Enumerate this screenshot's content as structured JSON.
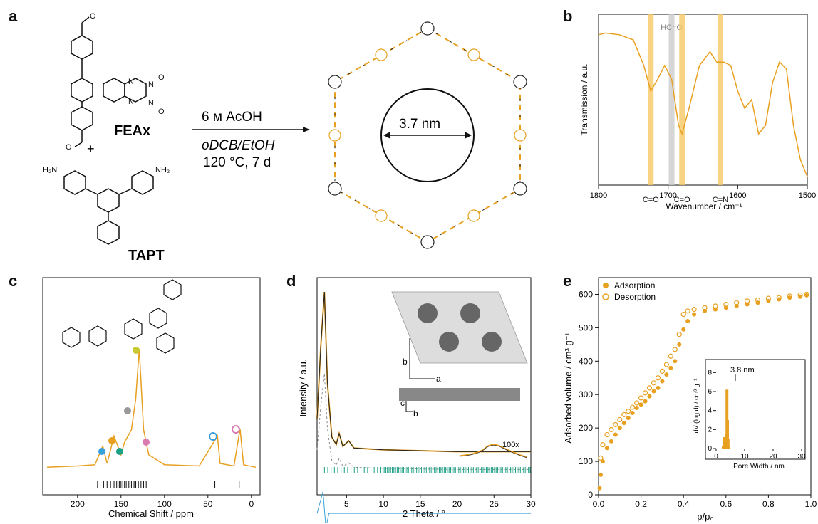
{
  "panels": {
    "a": "a",
    "b": "b",
    "c": "c",
    "d": "d",
    "e": "e"
  },
  "panel_a": {
    "compound1": "FEAx",
    "plus": "+",
    "compound2": "TAPT",
    "conditions_line1": "6 м AcOH",
    "conditions_line2": "oDCB/EtOH",
    "conditions_line3": "120 °C, 7 d",
    "pore_label": "3.7 nm",
    "amine_label": "H₂N",
    "amine_label_r": "NH₂"
  },
  "colors": {
    "orange": "#E8A020",
    "gray": "#999999",
    "teal": "#1AA085",
    "blue": "#3AA0D8",
    "pink": "#D97AB0",
    "yellowgreen": "#C8C830",
    "dark": "#222222"
  },
  "chart_data": [
    {
      "panel": "b",
      "type": "line",
      "xlabel": "Wavenumber / cm⁻¹",
      "ylabel": "Transmission / a.u.",
      "xlim": [
        1800,
        1500
      ],
      "xticks": [
        1800,
        1700,
        1600,
        1500
      ],
      "annotations": [
        {
          "label": "C=O",
          "x": 1725,
          "color": "#F7C865"
        },
        {
          "label": "HC=O",
          "x": 1695,
          "color": "#CCCCCC"
        },
        {
          "label": "C=O",
          "x": 1680,
          "color": "#F7C865"
        },
        {
          "label": "C=N",
          "x": 1625,
          "color": "#F7C865"
        }
      ],
      "series": [
        {
          "values": [
            [
              1800,
              0.88
            ],
            [
              1790,
              0.89
            ],
            [
              1770,
              0.88
            ],
            [
              1750,
              0.85
            ],
            [
              1735,
              0.7
            ],
            [
              1725,
              0.55
            ],
            [
              1715,
              0.62
            ],
            [
              1705,
              0.7
            ],
            [
              1695,
              0.62
            ],
            [
              1685,
              0.35
            ],
            [
              1680,
              0.3
            ],
            [
              1670,
              0.45
            ],
            [
              1655,
              0.7
            ],
            [
              1640,
              0.78
            ],
            [
              1630,
              0.72
            ],
            [
              1620,
              0.72
            ],
            [
              1610,
              0.7
            ],
            [
              1600,
              0.55
            ],
            [
              1590,
              0.45
            ],
            [
              1580,
              0.5
            ],
            [
              1570,
              0.3
            ],
            [
              1560,
              0.35
            ],
            [
              1550,
              0.6
            ],
            [
              1540,
              0.72
            ],
            [
              1530,
              0.68
            ],
            [
              1520,
              0.35
            ],
            [
              1510,
              0.15
            ],
            [
              1500,
              0.05
            ]
          ]
        }
      ]
    },
    {
      "panel": "c",
      "type": "line",
      "xlabel": "Chemical Shift / ppm",
      "xlim": [
        240,
        -10
      ],
      "xticks": [
        200,
        150,
        100,
        50,
        0
      ],
      "series": [
        {
          "values": [
            [
              235,
              0.05
            ],
            [
              200,
              0.06
            ],
            [
              180,
              0.07
            ],
            [
              171,
              0.22
            ],
            [
              166,
              0.08
            ],
            [
              158,
              0.3
            ],
            [
              150,
              0.15
            ],
            [
              146,
              0.25
            ],
            [
              138,
              0.35
            ],
            [
              133,
              0.6
            ],
            [
              129,
              1.0
            ],
            [
              124,
              0.35
            ],
            [
              118,
              0.15
            ],
            [
              100,
              0.07
            ],
            [
              60,
              0.06
            ],
            [
              39,
              0.3
            ],
            [
              36,
              0.08
            ],
            [
              20,
              0.06
            ],
            [
              13,
              0.36
            ],
            [
              9,
              0.07
            ],
            [
              -5,
              0.05
            ]
          ]
        }
      ],
      "ticks_below": [
        177,
        170,
        166,
        162,
        158,
        155,
        152,
        150,
        148,
        146,
        144,
        141,
        138,
        135,
        133,
        130,
        127,
        124,
        121,
        42,
        14
      ]
    },
    {
      "panel": "d",
      "type": "line",
      "xlabel": "2 Theta / °",
      "ylabel": "Intensity / a.u.",
      "xlim": [
        1,
        30
      ],
      "xticks": [
        5,
        10,
        15,
        20,
        25,
        30
      ],
      "annotations": [
        {
          "label": "100x"
        },
        {
          "label": "a"
        },
        {
          "label": "b"
        },
        {
          "label": "c"
        }
      ],
      "series": [
        {
          "values": [
            [
              1,
              0.3
            ],
            [
              1.5,
              0.7
            ],
            [
              2.0,
              1.0
            ],
            [
              2.4,
              0.5
            ],
            [
              3.0,
              0.2
            ],
            [
              3.6,
              0.16
            ],
            [
              4.0,
              0.22
            ],
            [
              4.5,
              0.15
            ],
            [
              5.3,
              0.18
            ],
            [
              6,
              0.14
            ],
            [
              10,
              0.13
            ],
            [
              20,
              0.12
            ],
            [
              30,
              0.12
            ]
          ]
        }
      ]
    },
    {
      "panel": "e",
      "type": "scatter",
      "xlabel": "p/p₀",
      "ylabel": "Adsorbed volume / cm³ g⁻¹",
      "xlim": [
        0,
        1.0
      ],
      "ylim": [
        0,
        650
      ],
      "xticks": [
        0.0,
        0.2,
        0.4,
        0.6,
        0.8,
        1.0
      ],
      "yticks": [
        0,
        100,
        200,
        300,
        400,
        500,
        600
      ],
      "legend": [
        "Adsorption",
        "Desorption"
      ],
      "series": [
        {
          "name": "Adsorption",
          "values": [
            [
              0.005,
              20
            ],
            [
              0.01,
              60
            ],
            [
              0.02,
              100
            ],
            [
              0.04,
              140
            ],
            [
              0.06,
              160
            ],
            [
              0.08,
              180
            ],
            [
              0.1,
              200
            ],
            [
              0.12,
              215
            ],
            [
              0.14,
              230
            ],
            [
              0.16,
              245
            ],
            [
              0.18,
              260
            ],
            [
              0.2,
              270
            ],
            [
              0.22,
              280
            ],
            [
              0.24,
              295
            ],
            [
              0.26,
              310
            ],
            [
              0.28,
              320
            ],
            [
              0.3,
              340
            ],
            [
              0.32,
              360
            ],
            [
              0.34,
              380
            ],
            [
              0.36,
              400
            ],
            [
              0.38,
              450
            ],
            [
              0.4,
              495
            ],
            [
              0.42,
              520
            ],
            [
              0.45,
              540
            ],
            [
              0.5,
              550
            ],
            [
              0.55,
              555
            ],
            [
              0.6,
              560
            ],
            [
              0.65,
              565
            ],
            [
              0.7,
              570
            ],
            [
              0.75,
              575
            ],
            [
              0.8,
              580
            ],
            [
              0.85,
              585
            ],
            [
              0.9,
              590
            ],
            [
              0.95,
              593
            ],
            [
              0.98,
              597
            ]
          ]
        },
        {
          "name": "Desorption",
          "values": [
            [
              0.98,
              600
            ],
            [
              0.95,
              598
            ],
            [
              0.9,
              595
            ],
            [
              0.85,
              590
            ],
            [
              0.8,
              588
            ],
            [
              0.75,
              583
            ],
            [
              0.7,
              580
            ],
            [
              0.65,
              575
            ],
            [
              0.6,
              570
            ],
            [
              0.55,
              565
            ],
            [
              0.5,
              560
            ],
            [
              0.45,
              555
            ],
            [
              0.42,
              550
            ],
            [
              0.4,
              540
            ],
            [
              0.38,
              480
            ],
            [
              0.36,
              435
            ],
            [
              0.34,
              415
            ],
            [
              0.32,
              390
            ],
            [
              0.3,
              370
            ],
            [
              0.28,
              350
            ],
            [
              0.26,
              335
            ],
            [
              0.24,
              320
            ],
            [
              0.22,
              305
            ],
            [
              0.2,
              290
            ],
            [
              0.18,
              275
            ],
            [
              0.16,
              262
            ],
            [
              0.14,
              250
            ],
            [
              0.12,
              240
            ],
            [
              0.1,
              225
            ],
            [
              0.08,
              210
            ],
            [
              0.06,
              195
            ],
            [
              0.04,
              180
            ],
            [
              0.02,
              150
            ],
            [
              0.01,
              110
            ]
          ]
        }
      ],
      "inset": {
        "xlabel": "Pore Width / nm",
        "ylabel": "dV (log d) / cm³ g⁻¹",
        "xlim": [
          0,
          30
        ],
        "ylim": [
          0,
          9
        ],
        "xticks": [
          0,
          10,
          20,
          30
        ],
        "yticks": [
          0,
          2,
          4,
          6,
          8
        ],
        "annotation": "3.8 nm",
        "values": [
          [
            2.5,
            0.3
          ],
          [
            3.0,
            1.2
          ],
          [
            3.2,
            0.8
          ],
          [
            3.5,
            1.5
          ],
          [
            3.8,
            6.2
          ],
          [
            4.0,
            3.0
          ],
          [
            4.2,
            1.0
          ],
          [
            4.5,
            0.2
          ]
        ]
      }
    }
  ]
}
